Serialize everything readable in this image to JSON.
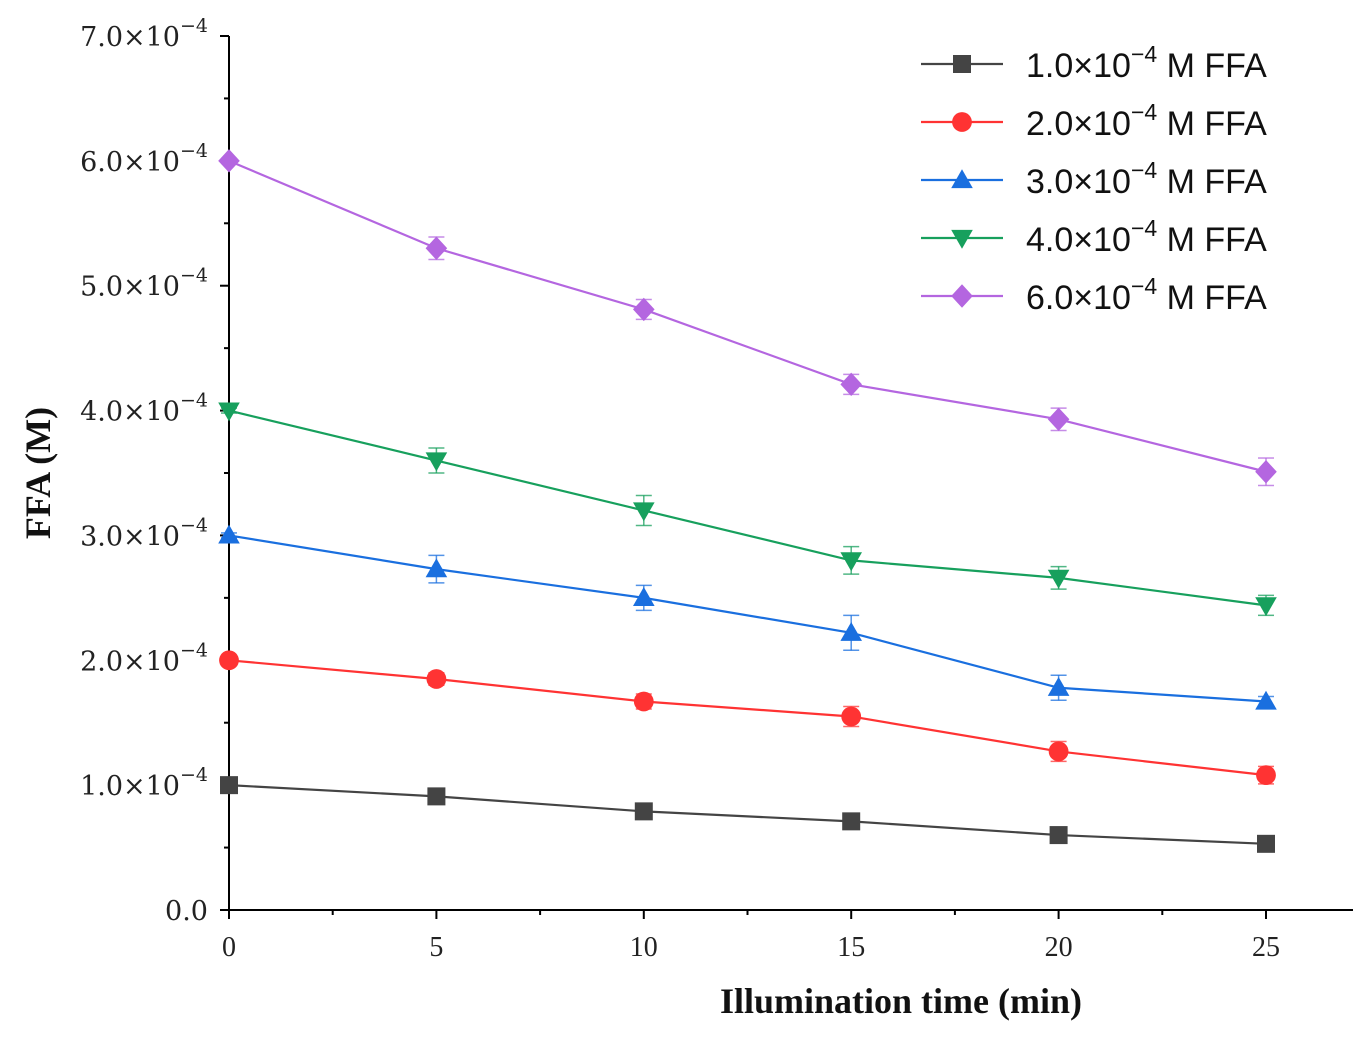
{
  "chart_data": {
    "type": "line",
    "title": "",
    "xlabel": "Illumination time (min)",
    "ylabel": "FFA (M)",
    "x": [
      0,
      5,
      10,
      15,
      20,
      25
    ],
    "xlim": [
      0,
      27
    ],
    "ylim": [
      0,
      0.0007
    ],
    "x_ticks": [
      "0",
      "5",
      "10",
      "15",
      "20",
      "25"
    ],
    "y_ticks": [
      {
        "value": 0,
        "label": "0.0",
        "exp": ""
      },
      {
        "value": 0.0001,
        "label": "1.0×10",
        "exp": "−4"
      },
      {
        "value": 0.0002,
        "label": "2.0×10",
        "exp": "−4"
      },
      {
        "value": 0.0003,
        "label": "3.0×10",
        "exp": "−4"
      },
      {
        "value": 0.0004,
        "label": "4.0×10",
        "exp": "−4"
      },
      {
        "value": 0.0005,
        "label": "5.0×10",
        "exp": "−4"
      },
      {
        "value": 0.0006,
        "label": "6.0×10",
        "exp": "−4"
      },
      {
        "value": 0.0007,
        "label": "7.0×10",
        "exp": "−4"
      }
    ],
    "grid": false,
    "legend_position": "top-right",
    "series": [
      {
        "name": "1.0×10",
        "name_exp": "−4",
        "name_suffix": " M FFA",
        "color": "#444444",
        "marker": "square",
        "values": [
          0.0001,
          9.1e-05,
          7.9e-05,
          7.1e-05,
          6e-05,
          5.3e-05
        ],
        "errors": [
          2e-06,
          3e-06,
          3e-06,
          4e-06,
          4e-06,
          3e-06
        ]
      },
      {
        "name": "2.0×10",
        "name_exp": "−4",
        "name_suffix": " M FFA",
        "color": "#ff3333",
        "marker": "circle",
        "values": [
          0.0002,
          0.000185,
          0.000167,
          0.000155,
          0.000127,
          0.000108
        ],
        "errors": [
          2e-06,
          5e-06,
          6e-06,
          8e-06,
          8e-06,
          7e-06
        ]
      },
      {
        "name": "3.0×10",
        "name_exp": "−4",
        "name_suffix": " M FFA",
        "color": "#1a6fdf",
        "marker": "triangle-up",
        "values": [
          0.0003,
          0.000273,
          0.00025,
          0.000222,
          0.000178,
          0.000167
        ],
        "errors": [
          2e-06,
          1.1e-05,
          1e-05,
          1.4e-05,
          1e-05,
          4e-06
        ]
      },
      {
        "name": "4.0×10",
        "name_exp": "−4",
        "name_suffix": " M FFA",
        "color": "#17a05d",
        "marker": "triangle-down",
        "values": [
          0.0004,
          0.00036,
          0.00032,
          0.00028,
          0.000266,
          0.000244
        ],
        "errors": [
          2e-06,
          1e-05,
          1.2e-05,
          1.1e-05,
          9e-06,
          8e-06
        ]
      },
      {
        "name": "6.0×10",
        "name_exp": "−4",
        "name_suffix": " M FFA",
        "color": "#b466e0",
        "marker": "diamond",
        "values": [
          0.0006,
          0.00053,
          0.000481,
          0.000421,
          0.000393,
          0.000351
        ],
        "errors": [
          2e-06,
          9e-06,
          8e-06,
          8e-06,
          9e-06,
          1.1e-05
        ]
      }
    ]
  }
}
